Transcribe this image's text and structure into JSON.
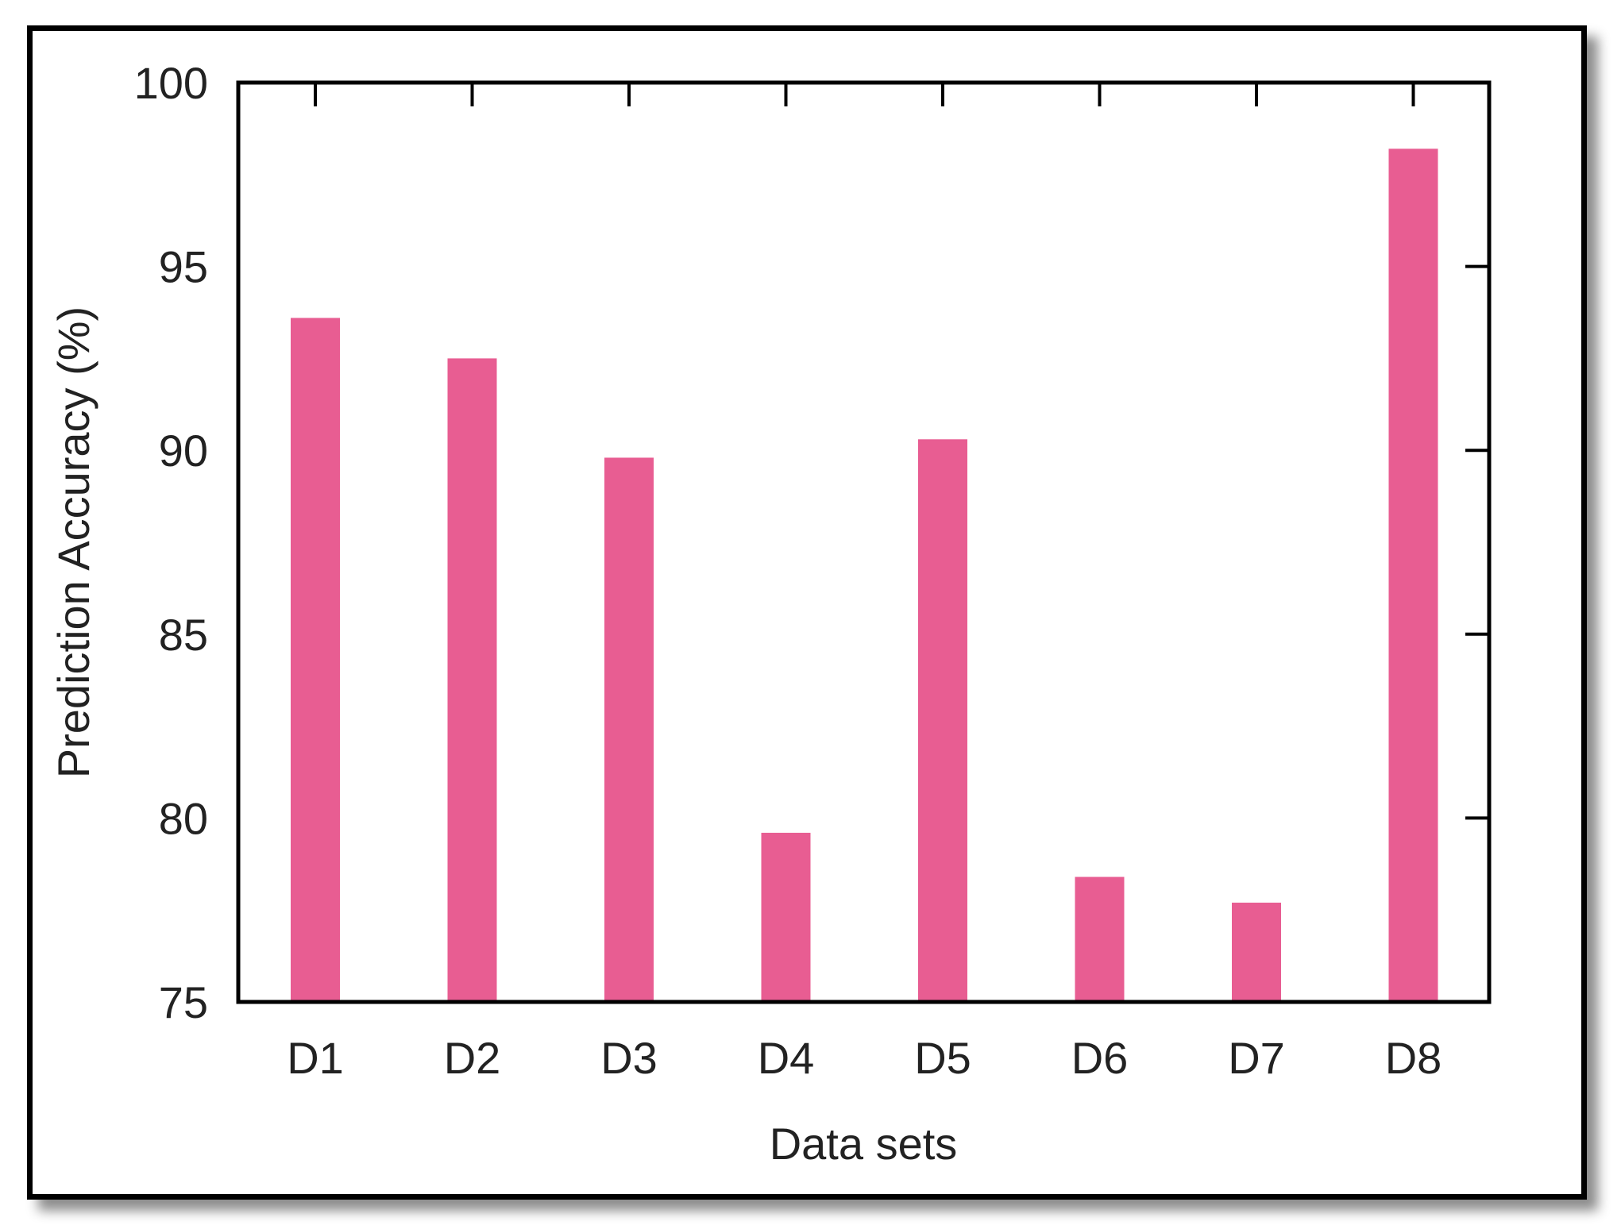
{
  "chart_data": {
    "type": "bar",
    "title": "",
    "xlabel": "Data sets",
    "ylabel": "Prediction Accuracy (%)",
    "categories": [
      "D1",
      "D2",
      "D3",
      "D4",
      "D5",
      "D6",
      "D7",
      "D8"
    ],
    "values": [
      93.6,
      92.5,
      89.8,
      79.6,
      90.3,
      78.4,
      77.7,
      98.2
    ],
    "ylim": [
      75,
      100
    ],
    "yticks": [
      75,
      80,
      85,
      90,
      95,
      100
    ],
    "grid": false,
    "legend": "none",
    "bar_color": "#E85D92"
  }
}
